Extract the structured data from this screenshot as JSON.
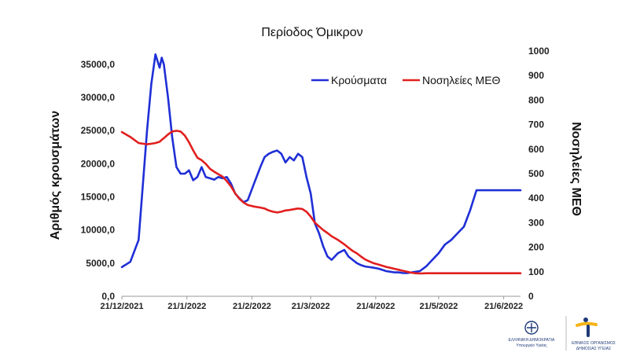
{
  "chart_data": {
    "type": "line",
    "title": "Περίοδος Όμικρον",
    "ylabel": "Αριθμός κρουσμάτων",
    "y2label": "Νοσηλείες ΜΕΘ",
    "ylim": [
      0,
      37000
    ],
    "y2lim": [
      0,
      1000
    ],
    "yticks": [
      "0,0",
      "5000,0",
      "10000,0",
      "15000,0",
      "20000,0",
      "25000,0",
      "30000,0",
      "35000,0"
    ],
    "y2ticks": [
      "0",
      "100",
      "200",
      "300",
      "400",
      "500",
      "600",
      "700",
      "800",
      "900",
      "1000"
    ],
    "xtick_labels": [
      "21/12/2021",
      "21/1/2022",
      "21/2/2022",
      "21/3/2022",
      "21/4/2022",
      "21/5/2022",
      "21/6/2022"
    ],
    "legend_position": "top-right",
    "x_days": [
      0,
      4,
      8,
      12,
      14,
      16,
      18,
      19,
      20,
      22,
      24,
      26,
      28,
      30,
      32,
      34,
      36,
      38,
      40,
      42,
      44,
      46,
      48,
      50,
      52,
      54,
      56,
      58,
      60,
      63,
      66,
      68,
      70,
      72,
      74,
      76,
      78,
      80,
      82,
      84,
      86,
      88,
      90,
      92,
      94,
      96,
      98,
      100,
      103,
      106,
      108,
      110,
      112,
      114,
      116,
      118,
      120,
      122,
      124,
      126,
      128,
      130,
      132,
      134,
      136,
      138,
      140,
      142,
      145,
      148,
      151,
      154,
      157,
      160,
      163,
      166,
      169,
      172,
      175,
      178,
      181,
      184,
      187,
      190
    ],
    "series": [
      {
        "name": "Κρούσματα",
        "color": "#1f2fd6",
        "axis": "left",
        "values": [
          4400,
          5200,
          8500,
          25000,
          32000,
          36500,
          34500,
          36000,
          35000,
          30000,
          24000,
          19500,
          18500,
          18500,
          19000,
          17500,
          18000,
          19500,
          18000,
          17800,
          17600,
          18000,
          17800,
          18000,
          17000,
          15500,
          14800,
          14200,
          14500,
          17000,
          19500,
          21000,
          21500,
          21800,
          22000,
          21500,
          20200,
          21000,
          20500,
          21500,
          21000,
          18000,
          15500,
          11000,
          9500,
          7500,
          6000,
          5500,
          6500,
          7000,
          6000,
          5500,
          5000,
          4700,
          4500,
          4400,
          4300,
          4200,
          4000,
          3800,
          3700,
          3600,
          3600,
          3500,
          3500,
          3600,
          3700,
          3800,
          4500,
          5500,
          6500,
          7800,
          8500,
          9500,
          10500,
          13000,
          16000,
          16000,
          16000,
          16000,
          16000,
          16000,
          16000,
          16000
        ]
      },
      {
        "name": "Νοσηλείες ΜΕΘ",
        "color": "#e21f1f",
        "axis": "right",
        "values": [
          670,
          650,
          625,
          620,
          622,
          625,
          630,
          638,
          645,
          660,
          672,
          675,
          672,
          655,
          628,
          595,
          565,
          555,
          540,
          520,
          508,
          498,
          488,
          470,
          448,
          420,
          398,
          382,
          372,
          366,
          362,
          358,
          350,
          345,
          342,
          345,
          350,
          352,
          355,
          358,
          356,
          345,
          325,
          300,
          285,
          270,
          258,
          245,
          230,
          212,
          198,
          185,
          175,
          162,
          150,
          142,
          135,
          130,
          125,
          120,
          116,
          112,
          108,
          104,
          100,
          96,
          94,
          93,
          94,
          94,
          94,
          94,
          94,
          94,
          94,
          94,
          94,
          94,
          94,
          94,
          94,
          94,
          94,
          94
        ]
      }
    ]
  },
  "logos": {
    "left_line1": "ΕΛΛΗΝΙΚΗ ΔΗΜΟΚΡΑΤΙΑ",
    "left_line2": "Υπουργείο Υγείας",
    "right_line1": "ΕΘΝΙΚΟΣ ΟΡΓΑΝΙΣΜΟΣ",
    "right_line2": "ΔΗΜΟΣΙΑΣ ΥΓΕΙΑΣ"
  }
}
